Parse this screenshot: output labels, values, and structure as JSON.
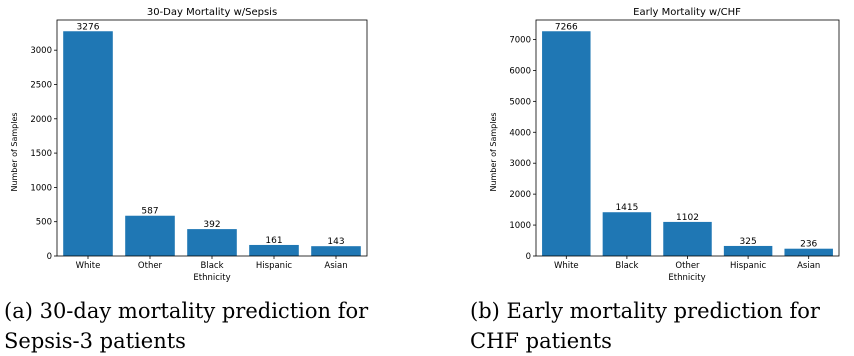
{
  "chart_data": [
    {
      "type": "bar",
      "title": "30-Day Mortality w/Sepsis",
      "xlabel": "Ethnicity",
      "ylabel": "Number of Samples",
      "categories": [
        "White",
        "Other",
        "Black",
        "Hispanic",
        "Asian"
      ],
      "values": [
        3276,
        587,
        392,
        161,
        143
      ],
      "data_labels": [
        "3276",
        "587",
        "392",
        "161",
        "143"
      ],
      "ylim": [
        0,
        3440
      ],
      "yticks": [
        0,
        500,
        1000,
        1500,
        2000,
        2500,
        3000
      ],
      "ytick_labels": [
        "0",
        "500",
        "1000",
        "1500",
        "2000",
        "2500",
        "3000"
      ],
      "bar_color": "#1f77b4",
      "grid": false,
      "caption_lines": [
        "(a) 30-day mortality prediction for",
        "Sepsis-3 patients"
      ]
    },
    {
      "type": "bar",
      "title": "Early Mortality w/CHF",
      "xlabel": "Ethnicity",
      "ylabel": "Number of Samples",
      "categories": [
        "White",
        "Black",
        "Other",
        "Hispanic",
        "Asian"
      ],
      "values": [
        7266,
        1415,
        1102,
        325,
        236
      ],
      "data_labels": [
        "7266",
        "1415",
        "1102",
        "325",
        "236"
      ],
      "ylim": [
        0,
        7630
      ],
      "yticks": [
        0,
        1000,
        2000,
        3000,
        4000,
        5000,
        6000,
        7000
      ],
      "ytick_labels": [
        "0",
        "1000",
        "2000",
        "3000",
        "4000",
        "5000",
        "6000",
        "7000"
      ],
      "bar_color": "#1f77b4",
      "grid": false,
      "caption_lines": [
        "(b) Early mortality prediction for",
        "CHF patients"
      ]
    }
  ]
}
